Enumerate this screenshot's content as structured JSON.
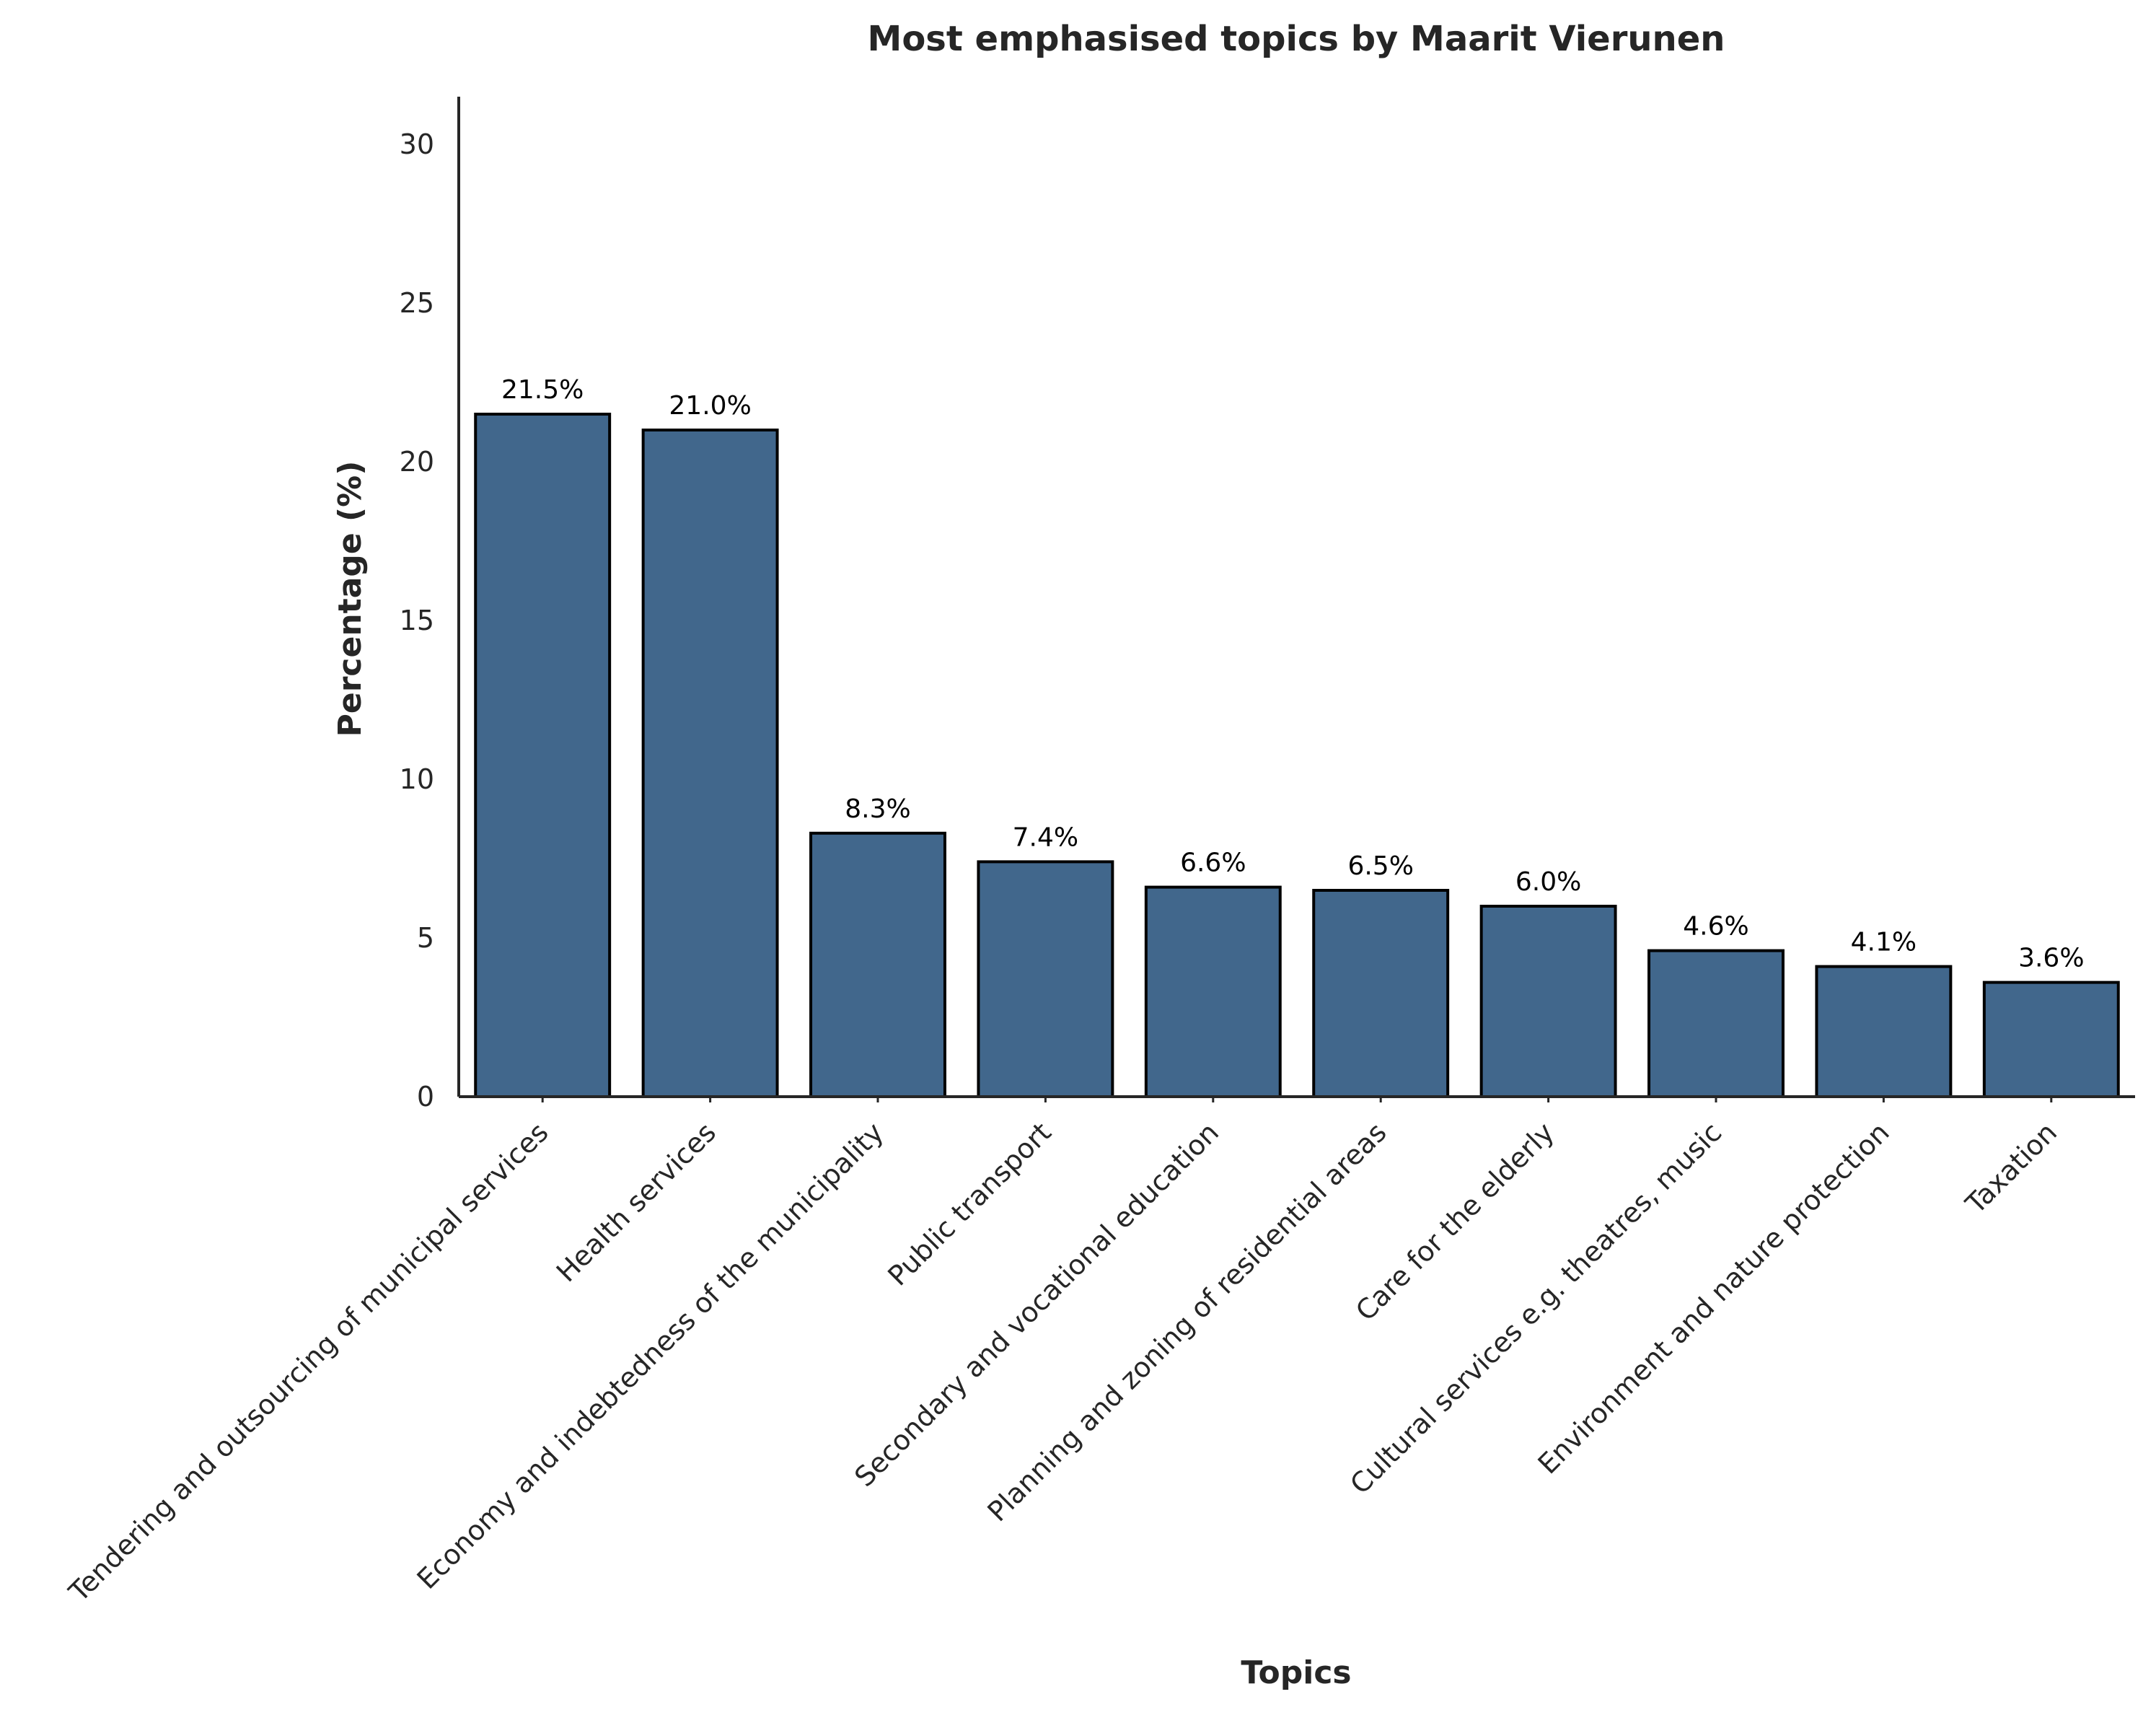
{
  "chart_data": {
    "type": "bar",
    "title": "Most emphasised topics by Maarit Vierunen",
    "xlabel": "Topics",
    "ylabel": "Percentage (%)",
    "ylim": [
      0,
      31.5
    ],
    "yticks": [
      0,
      5,
      10,
      15,
      20,
      25,
      30
    ],
    "grid": false,
    "legend": "none",
    "bar_color": "#41678c",
    "bar_edge_color": "#000000",
    "categories": [
      "Tendering and outsourcing of municipal services",
      "Health services",
      "Economy and indebtedness of the municipality",
      "Public transport",
      "Secondary and vocational education",
      "Planning and zoning of residential areas",
      "Care for the elderly",
      "Cultural services e.g. theatres, music",
      "Environment and nature protection",
      "Taxation"
    ],
    "values": [
      21.5,
      21.0,
      8.3,
      7.4,
      6.6,
      6.5,
      6.0,
      4.6,
      4.1,
      3.6
    ],
    "value_labels": [
      "21.5%",
      "21.0%",
      "8.3%",
      "7.4%",
      "6.6%",
      "6.5%",
      "6.0%",
      "4.6%",
      "4.1%",
      "3.6%"
    ]
  }
}
